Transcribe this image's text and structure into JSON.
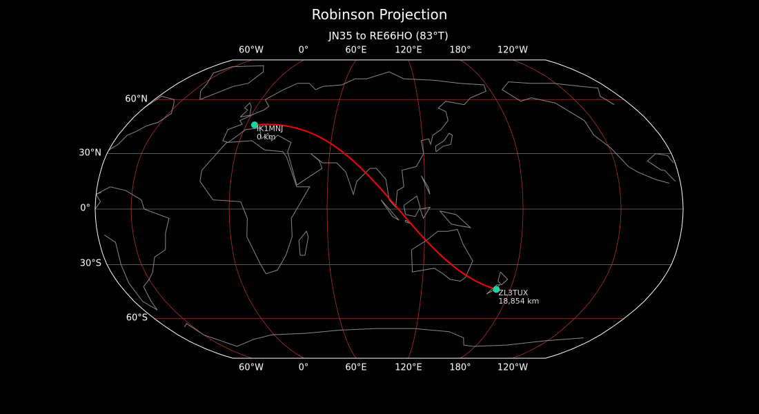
{
  "title": "Robinson Projection",
  "subtitle": "JN35 to RE66HO (83°T)",
  "projection": "robinson",
  "central_longitude": 100,
  "lon_labels_top": [
    "60°W",
    "0°",
    "60°E",
    "120°E",
    "180°",
    "120°W"
  ],
  "lon_labels_bottom": [
    "60°W",
    "0°",
    "60°E",
    "120°E",
    "180°",
    "120°W"
  ],
  "lat_labels": [
    "60°N",
    "30°N",
    "0°",
    "30°S",
    "60°S"
  ],
  "colors": {
    "background": "#000000",
    "coastline": "#8a8a8a",
    "major_gridline": "#d42020",
    "minor_gridline": "#777777",
    "meridian": "#b03030",
    "path": "#ff0000",
    "station": "#1fd1a0",
    "outline": "#ffffff"
  },
  "stations": [
    {
      "call": "IK1MNJ",
      "distance": "0 km",
      "lat": 45.6,
      "lon": 7.7
    },
    {
      "call": "ZL3TUX",
      "distance": "18,854 km",
      "lat": -43.5,
      "lon": 172.6
    }
  ]
}
